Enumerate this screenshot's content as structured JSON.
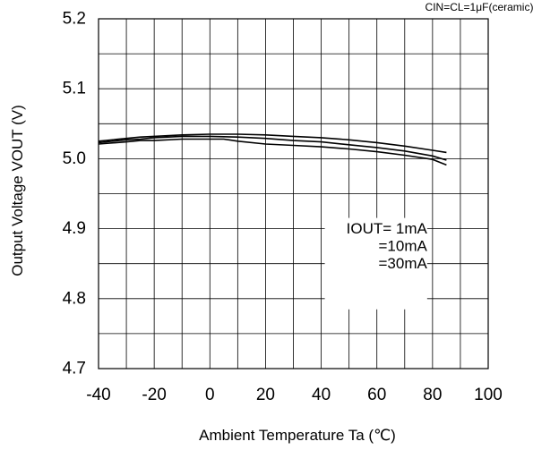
{
  "chart_data": {
    "type": "line",
    "subtitle": "CIN=CL=1μF(ceramic)",
    "xlabel": "Ambient Temperature  Ta  (℃)",
    "ylabel": "Output Voltage  VOUT  (V)",
    "xlim": [
      -40,
      100
    ],
    "ylim": [
      4.7,
      5.2
    ],
    "x_ticks": [
      "-40",
      "-20",
      "0",
      "20",
      "40",
      "60",
      "80",
      "100"
    ],
    "y_ticks": [
      "4.7",
      "4.8",
      "4.9",
      "5.0",
      "5.1",
      "5.2"
    ],
    "x_grid_step": 10,
    "y_grid_step": 0.05,
    "grid": true,
    "legend_placement": "center-right",
    "legend_entries": [
      "IOUT=  1mA",
      "=10mA",
      "=30mA"
    ],
    "series": [
      {
        "name": "IOUT=  1mA",
        "x": [
          -40,
          -30,
          -25,
          -20,
          -10,
          0,
          10,
          20,
          30,
          40,
          50,
          60,
          70,
          80,
          85
        ],
        "y": [
          5.025,
          5.029,
          5.031,
          5.032,
          5.034,
          5.035,
          5.035,
          5.034,
          5.032,
          5.03,
          5.027,
          5.023,
          5.018,
          5.012,
          5.009
        ]
      },
      {
        "name": "=10mA",
        "x": [
          -40,
          -30,
          -25,
          -20,
          -10,
          0,
          10,
          20,
          30,
          40,
          50,
          60,
          70,
          80,
          85
        ],
        "y": [
          5.023,
          5.027,
          5.028,
          5.03,
          5.032,
          5.032,
          5.031,
          5.029,
          5.026,
          5.024,
          5.02,
          5.016,
          5.011,
          5.004,
          4.998
        ]
      },
      {
        "name": "=30mA",
        "x": [
          -40,
          -30,
          -25,
          -20,
          -10,
          0,
          5,
          10,
          20,
          30,
          40,
          50,
          60,
          70,
          80,
          85
        ],
        "y": [
          5.021,
          5.024,
          5.026,
          5.026,
          5.028,
          5.028,
          5.028,
          5.025,
          5.021,
          5.019,
          5.017,
          5.014,
          5.01,
          5.005,
          4.999,
          4.991
        ]
      }
    ]
  },
  "colors": {
    "axis": "#000000",
    "grid": "#000000",
    "series": "#000000",
    "background": "#ffffff"
  }
}
